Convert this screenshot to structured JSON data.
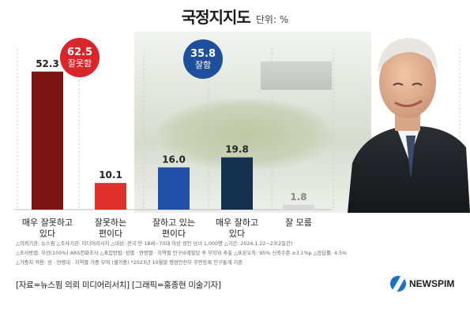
{
  "header": {
    "title": "국정지지도",
    "unit": "단위: %"
  },
  "badges": {
    "negative": {
      "value": "62.5",
      "label": "잘못함",
      "color": "#d9262a"
    },
    "positive": {
      "value": "35.8",
      "label": "잘함",
      "color": "#1e4f9c"
    }
  },
  "chart_data": {
    "type": "bar",
    "title": "국정지지도",
    "ylabel": "",
    "ylim": [
      0,
      60
    ],
    "grid": "vertical dashed",
    "categories": [
      "매우 잘못하고\n있다",
      "잘못하는\n편이다",
      "잘하고 있는\n편이다",
      "매우 잘하고\n있다",
      "잘 모름"
    ],
    "values": [
      52.3,
      10.1,
      16.0,
      19.8,
      1.8
    ],
    "value_labels": [
      "52.3",
      "10.1",
      "16.0",
      "19.8",
      "1.8"
    ],
    "bar_colors": [
      "#7d1414",
      "#e0302b",
      "#1f4fa6",
      "#14304f",
      "#d8d8d8"
    ],
    "label_colors": [
      "#222222",
      "#222222",
      "#222222",
      "#222222",
      "#8a8a8a"
    ]
  },
  "notes": [
    "△의뢰기관: 뉴스핌  △조사기관: 미디어리서치  △대상: 전국 만 18세~70대 이상 성인 남녀 1,000명  △기간: 2024.1.22~23(2일간)",
    "△조사방법: 무선(100%) ARS전화조사  △표집방법: 성별ㆍ연령별ㆍ지역별 인구비례할당 후 무작위 추출  △표본오차: 95% 신뢰수준 ±3.1%p  △응답률: 4.5%",
    "△가중치 적용: 성ㆍ연령대ㆍ지역별 가중 부여 (셀가중) *2023년 10월말 행정안전부 주민등록 인구통계 기준"
  ],
  "source": "[자료=뉴스핌 의뢰 미디어리서치] [그래픽=홍종현 미술기자]",
  "logo": {
    "text": "NEWSPIM",
    "icon": "newspim-logo-icon",
    "color": "#1a6fc7"
  }
}
